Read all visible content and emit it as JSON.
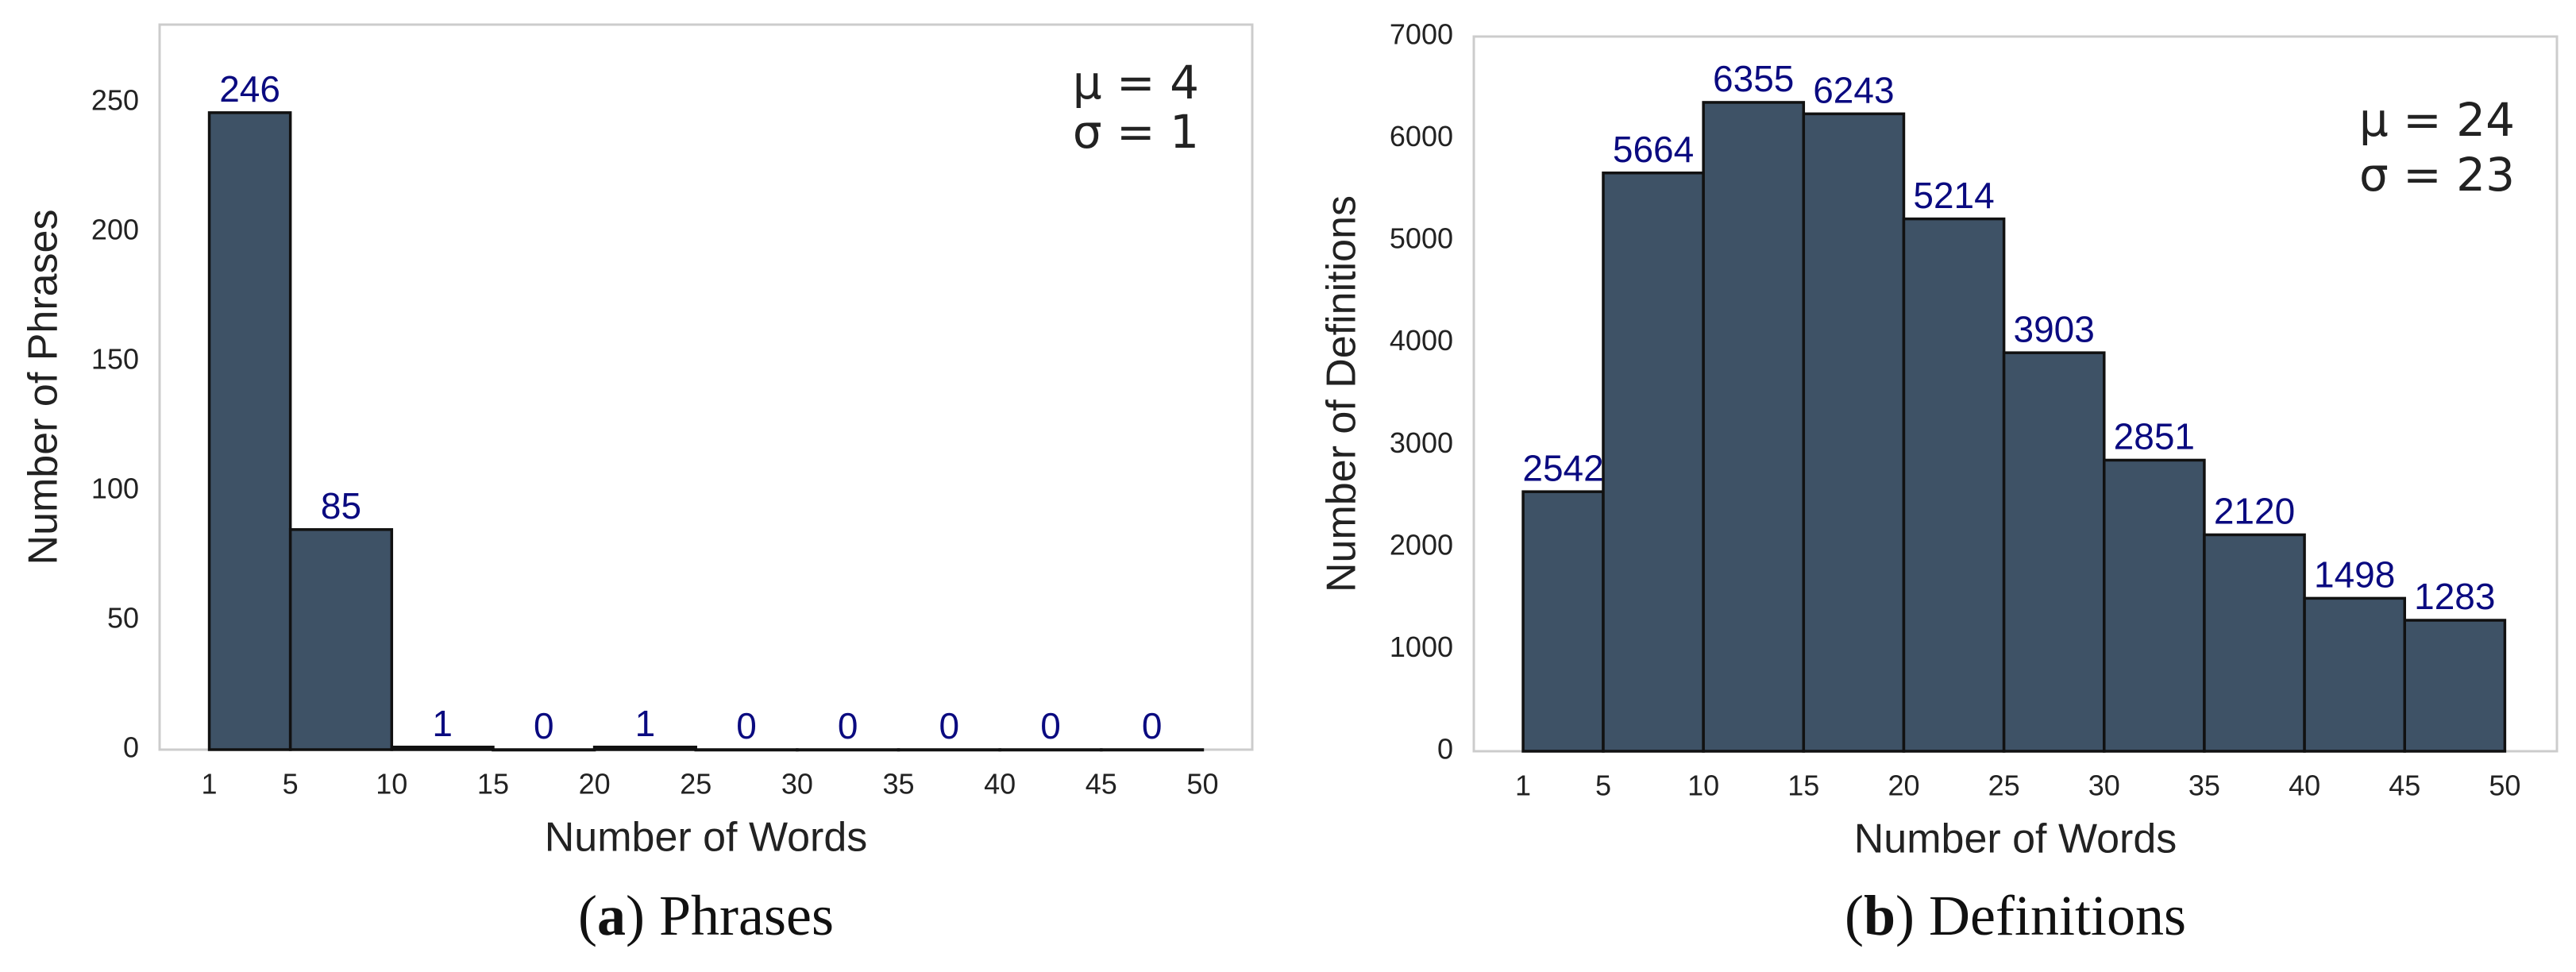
{
  "chart_data": [
    {
      "type": "histogram",
      "xlabel": "Number of Words",
      "ylabel": "Number of Phrases",
      "bins": [
        1,
        5,
        10,
        15,
        20,
        25,
        30,
        35,
        40,
        45,
        50
      ],
      "values": [
        246,
        85,
        1,
        0,
        1,
        0,
        0,
        0,
        0,
        0
      ],
      "color": "#3e5266",
      "edgecolor": "#111111",
      "label_color": "#0a0a80",
      "xlim": [
        -1.45,
        52.45
      ],
      "xticks": [
        1,
        5,
        10,
        15,
        20,
        25,
        30,
        35,
        40,
        45,
        50
      ],
      "ylim": [
        0,
        280
      ],
      "yticks": [
        0,
        50,
        100,
        150,
        200,
        250
      ],
      "grid": false,
      "annotations": [
        "μ = 4",
        "σ = 1"
      ],
      "caption_parts": [
        "(",
        "a",
        ") Phrases"
      ]
    },
    {
      "type": "histogram",
      "xlabel": "Number of Words",
      "ylabel": "Number of Definitions",
      "bins": [
        1,
        5,
        10,
        15,
        20,
        25,
        30,
        35,
        40,
        45,
        50
      ],
      "values": [
        2542,
        5664,
        6355,
        6243,
        5214,
        3903,
        2851,
        2120,
        1498,
        1283
      ],
      "color": "#3e5266",
      "edgecolor": "#111111",
      "label_color": "#0a0a80",
      "xlim": [
        -1.46,
        52.6
      ],
      "xticks": [
        1,
        5,
        10,
        15,
        20,
        25,
        30,
        35,
        40,
        45,
        50
      ],
      "ylim": [
        0,
        7000
      ],
      "yticks": [
        0,
        1000,
        2000,
        3000,
        4000,
        5000,
        6000,
        7000
      ],
      "grid": false,
      "annotations": [
        "μ = 24",
        "σ = 23"
      ],
      "caption_parts": [
        "(",
        "b",
        ") Definitions"
      ]
    }
  ]
}
